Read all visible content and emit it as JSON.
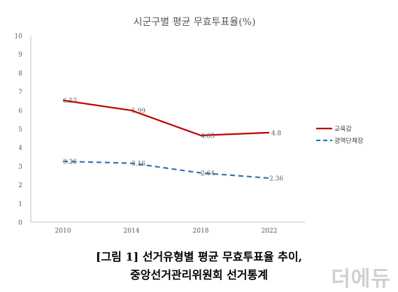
{
  "chart_data": {
    "type": "line",
    "title": "시군구별 평균 무효투표율(%)",
    "x": [
      "2010",
      "2014",
      "2018",
      "2022"
    ],
    "ylim": [
      0,
      10
    ],
    "yticks": [
      "0",
      "1",
      "2",
      "3",
      "4",
      "5",
      "6",
      "7",
      "8",
      "9",
      "10"
    ],
    "grid": false,
    "legend": "right",
    "series": [
      {
        "name": "교육감",
        "values": [
          6.53,
          5.99,
          4.65,
          4.8
        ],
        "labels": [
          "6.53",
          "5.99",
          "4.65",
          "4.8"
        ],
        "color": "#c00000",
        "dash": false
      },
      {
        "name": "광역단체장",
        "values": [
          3.26,
          3.16,
          2.64,
          2.36
        ],
        "labels": [
          "3.26",
          "3.16",
          "2.64",
          "2.36"
        ],
        "color": "#2e75b6",
        "dash": true
      }
    ]
  },
  "caption": {
    "line1": "[그림 1] 선거유형별 평균 무효투표율 추이,",
    "line2": "중앙선거관리위원회 선거통계"
  },
  "watermark": "더에듀",
  "colors": {
    "axis": "#bfbfbf",
    "tick_text": "#595959",
    "title_text": "#595959"
  }
}
